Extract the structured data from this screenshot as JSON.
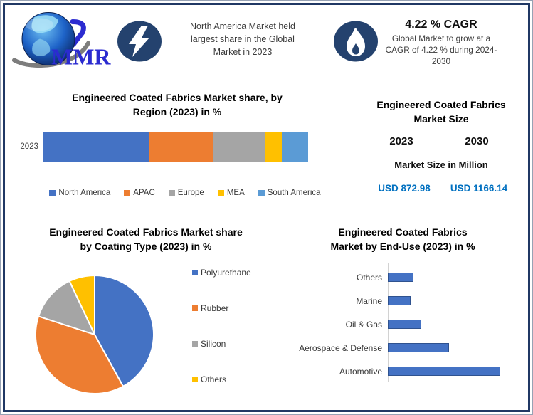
{
  "frame": {
    "border_color": "#203864"
  },
  "header": {
    "logo_text": "MMR",
    "headline_lines": [
      "North America Market held",
      "largest share in the Global",
      "Market in 2023"
    ],
    "cagr_title": "4.22 % CAGR",
    "cagr_sub_lines": [
      "Global Market to grow at a",
      "CAGR of 4.22 % during 2024-",
      "2030"
    ]
  },
  "icons": {
    "logo": "globe-mmr-logo",
    "headline_badge": "lightning-icon",
    "cagr_badge": "flame-icon",
    "badge_circle_color": "#24426E",
    "badge_glyph_color": "#FFFFFF"
  },
  "market_size": {
    "title_lines": [
      "Engineered Coated Fabrics",
      "Market Size"
    ],
    "year_left": "2023",
    "year_right": "2030",
    "subtitle": "Market Size in Million",
    "value_left": "USD 872.98",
    "value_right": "USD 1166.14",
    "value_color": "#0070C0"
  },
  "chart_data": [
    {
      "id": "region",
      "type": "bar",
      "variant": "horizontal-stacked",
      "title_lines": [
        "Engineered Coated Fabrics Market share, by",
        "Region (2023) in %"
      ],
      "category": "2023",
      "unit": "%",
      "xlim": [
        0,
        100
      ],
      "legend_position": "bottom",
      "series": [
        {
          "name": "North America",
          "value": 40,
          "color": "#4472C4"
        },
        {
          "name": "APAC",
          "value": 24,
          "color": "#ED7D31"
        },
        {
          "name": "Europe",
          "value": 20,
          "color": "#A5A5A5"
        },
        {
          "name": "MEA",
          "value": 6,
          "color": "#FFC000"
        },
        {
          "name": "South America",
          "value": 10,
          "color": "#5B9BD5"
        }
      ]
    },
    {
      "id": "coating",
      "type": "pie",
      "title_lines": [
        "Engineered Coated Fabrics Market share",
        "by Coating Type (2023) in %"
      ],
      "unit": "%",
      "legend_position": "right",
      "start_angle_deg": 0,
      "direction": "clockwise",
      "slices": [
        {
          "name": "Polyurethane",
          "value": 42,
          "color": "#4472C4"
        },
        {
          "name": "Rubber",
          "value": 38,
          "color": "#ED7D31"
        },
        {
          "name": "Silicon",
          "value": 13,
          "color": "#A5A5A5"
        },
        {
          "name": "Others",
          "value": 7,
          "color": "#FFC000"
        }
      ]
    },
    {
      "id": "enduse",
      "type": "bar",
      "variant": "horizontal",
      "title_lines": [
        "Engineered Coated Fabrics",
        "Market by End-Use (2023) in %"
      ],
      "unit": "%",
      "xmax": 44,
      "grid": false,
      "categories": [
        "Others",
        "Marine",
        "Oil & Gas",
        "Aerospace & Defense",
        "Automotive"
      ],
      "values": [
        10,
        9,
        13,
        24,
        44
      ],
      "bar_color": "#4472C4",
      "bar_border_color": "#2F528F"
    }
  ]
}
